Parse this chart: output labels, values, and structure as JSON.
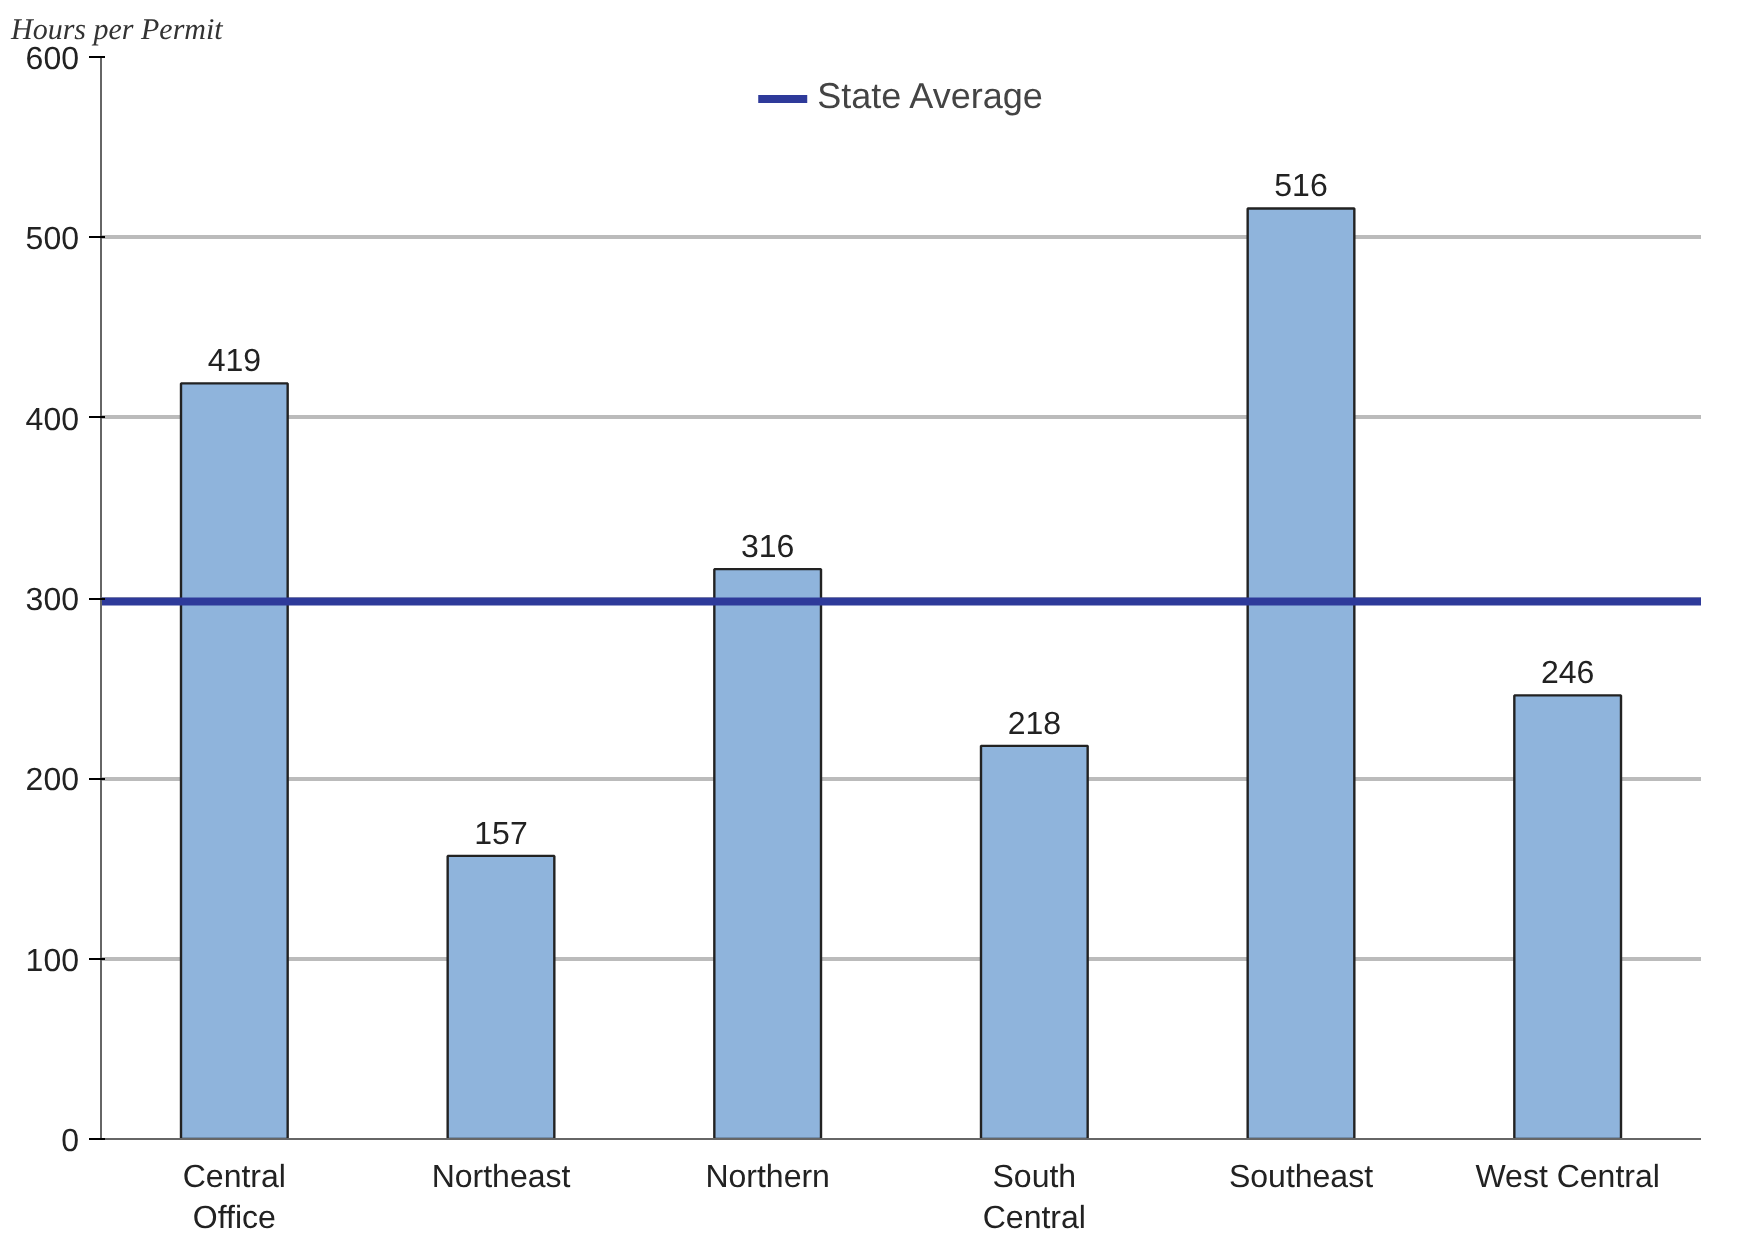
{
  "chart_data": {
    "type": "bar",
    "ylabel": "Hours per Permit",
    "categories": [
      "Central Office",
      "Northeast",
      "Northern",
      "South Central",
      "Southeast",
      "West Central"
    ],
    "values": [
      419,
      157,
      316,
      218,
      516,
      246
    ],
    "color": "#8fb4dc",
    "data_labels": true,
    "ylim": [
      0,
      600
    ],
    "yticks": [
      0,
      100,
      200,
      300,
      400,
      500,
      600
    ],
    "grid": "y",
    "legend": "top",
    "ref_lines": [
      {
        "axis": "y",
        "value": 298,
        "label": "State Average",
        "color": "#2e3a9a",
        "line_style": "solid"
      }
    ]
  }
}
